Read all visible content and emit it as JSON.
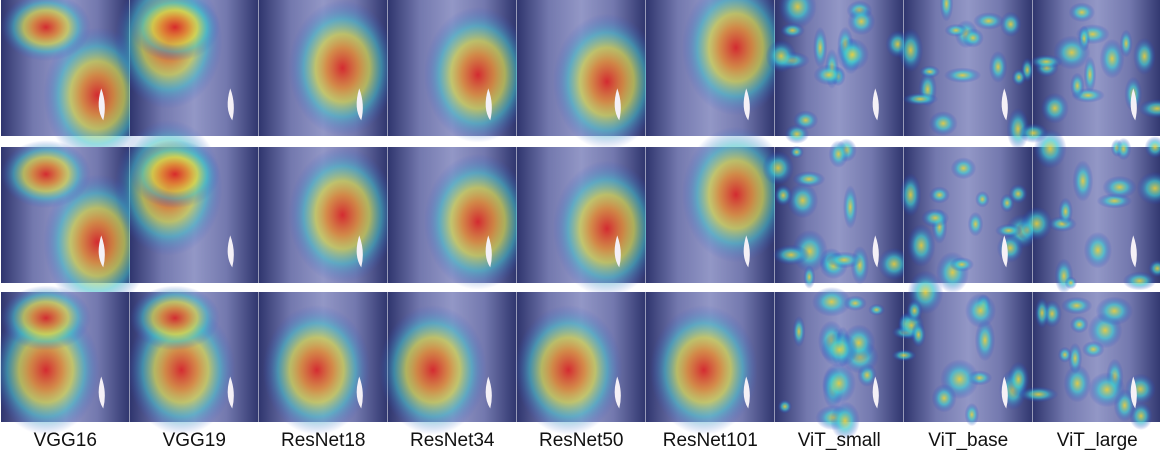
{
  "columns": [
    "VGG16",
    "VGG19",
    "ResNet18",
    "ResNet34",
    "ResNet50",
    "ResNet101",
    "ViT_small",
    "ViT_base",
    "ViT_large"
  ]
}
